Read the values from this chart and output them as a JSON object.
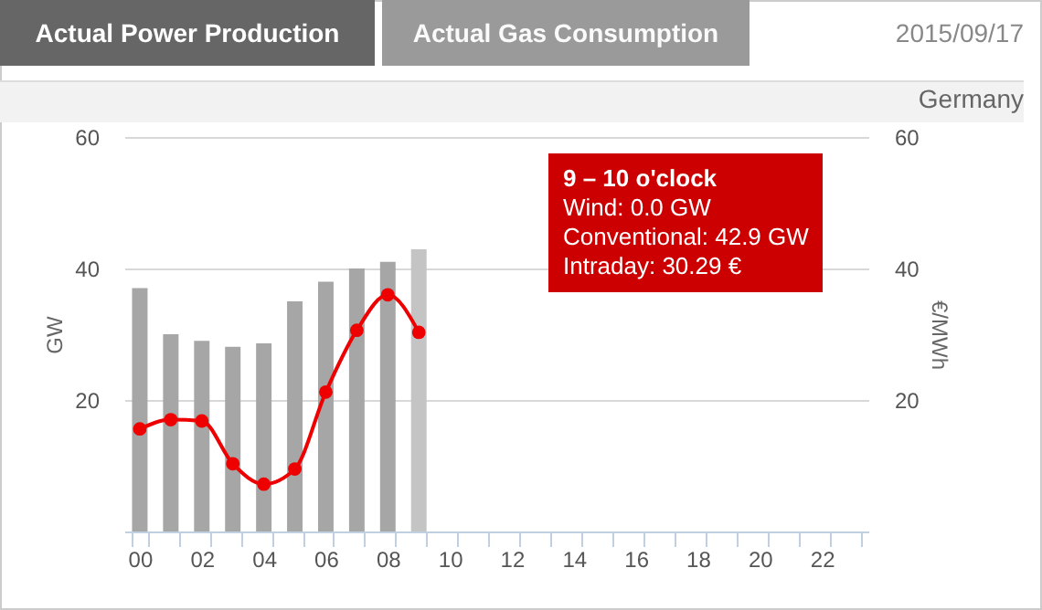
{
  "chart_data": {
    "type": "bar",
    "annotations": [
      "Actual Power Production",
      "Actual Gas Consumption",
      "2015/09/17",
      "Germany",
      "9 – 10 o'clock\nWind: 0.0 GW\nConventional: 42.9 GW\nIntraday: 30.29 €"
    ],
    "categories": [
      "00",
      null,
      "02",
      null,
      "04",
      null,
      "06",
      null,
      "08",
      null,
      "10",
      null,
      "12",
      null,
      "14",
      null,
      "16",
      null,
      "18",
      null,
      "20",
      null,
      "22",
      null
    ],
    "series": [
      {
        "color": "#a6a6a6",
        "colors": [
          "#a6a6a6",
          "#a6a6a6",
          "#a6a6a6",
          "#a6a6a6",
          "#a6a6a6",
          "#a6a6a6",
          "#a6a6a6",
          "#a6a6a6",
          "#a6a6a6",
          "#c4c4c4",
          null,
          null,
          null,
          null,
          null,
          null,
          null,
          null,
          null,
          null,
          null,
          null,
          null,
          null
        ],
        "values": [
          37,
          30.0,
          29.0,
          28.1,
          28.6,
          35,
          38,
          40,
          41,
          42.9,
          null,
          null,
          null,
          null,
          null,
          null,
          null,
          null,
          null,
          null,
          null,
          null,
          null,
          null
        ]
      },
      {
        "type": "line",
        "axis": "y2",
        "color": "#ee0000",
        "values": [
          15.6,
          17.0,
          16.8,
          10.3,
          7.2,
          9.5,
          21.2,
          30.6,
          36,
          30.29,
          null,
          null,
          null,
          null,
          null,
          null,
          null,
          null,
          null,
          null,
          null,
          null,
          null,
          null
        ]
      }
    ],
    "ylabel": "GW",
    "y2label": "€/MWh",
    "ylim": [
      0,
      60
    ],
    "yticks": [
      20,
      40,
      60
    ],
    "y2lim": [
      0,
      60
    ],
    "y2ticks": [
      20,
      40,
      60
    ],
    "grid": "y",
    "marker": "circle",
    "line_style": "solid"
  }
}
